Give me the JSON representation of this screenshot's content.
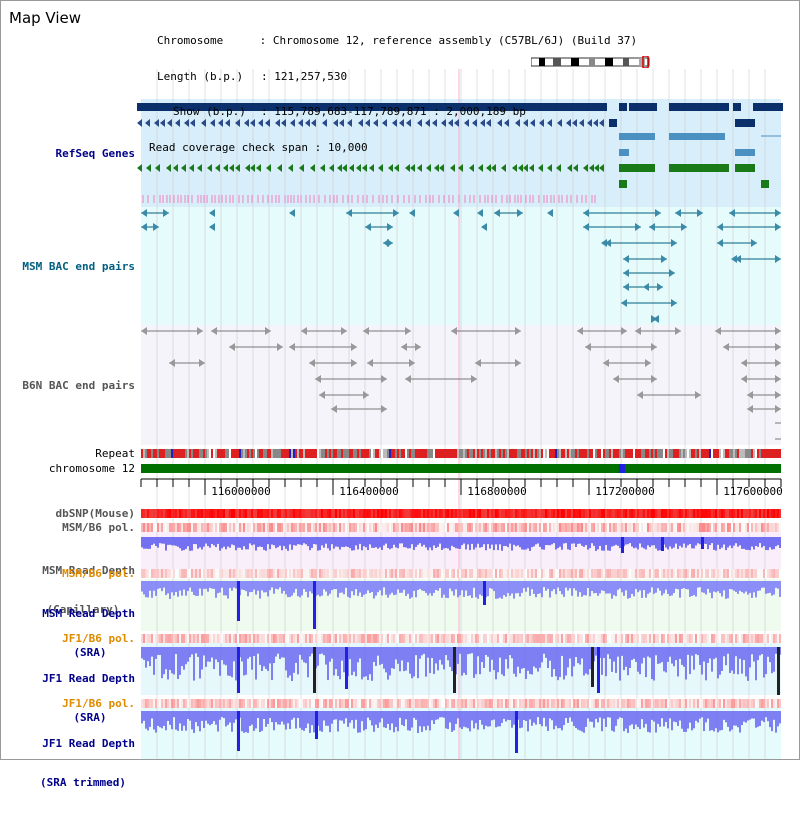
{
  "window": {
    "title": "Map View"
  },
  "header": {
    "chrom_key": "Chromosome",
    "chrom_val": "Chromosome 12, reference assembly (C57BL/6J) (Build 37)",
    "length_key": "Length (b.p.)",
    "length_val": "121,257,530",
    "show_key": "Show (b.p.)",
    "show_val": "115,789,683-117,789,871 : 2,000,189 bp",
    "coverage_key": "Read coverage check span",
    "coverage_val": "10,000"
  },
  "tracks": {
    "refseq": "RefSeq Genes",
    "msm_bac": "MSM BAC end pairs",
    "b6n_bac": "B6N BAC end pairs",
    "repeat": "Repeat",
    "chromosome": "chromosome 12",
    "dbsnp": "dbSNP(Mouse)",
    "msm_b6_pol": "MSM/B6 pol.",
    "msm_depth_cap_1": "MSM Read Depth",
    "msm_depth_cap_2": "(Capillary)",
    "msm_b6_pol_2": "MSM/B6 pol.",
    "msm_depth_sra_1": "MSM Read Depth",
    "msm_depth_sra_2": "(SRA)",
    "jf1_b6_pol": "JF1/B6 pol.",
    "jf1_depth_sra_1": "JF1 Read Depth",
    "jf1_depth_sra_2": "(SRA)",
    "jf1_b6_pol_2": "JF1/B6 pol.",
    "jf1_depth_trim_1": "JF1 Read Depth",
    "jf1_depth_trim_2": "(SRA trimmed)"
  },
  "axis": {
    "ticks": [
      "116000000",
      "116400000",
      "116800000",
      "117200000",
      "117600000"
    ]
  },
  "colors": {
    "refseq_blue": "#0a2f6b",
    "refseq_green": "#1a7a1a",
    "label_blue": "#00008b",
    "label_teal": "#005f80",
    "label_gray": "#555555",
    "label_orange": "#e08a00",
    "depth_blue": "#2020e8",
    "chrom_green": "#007000"
  }
}
